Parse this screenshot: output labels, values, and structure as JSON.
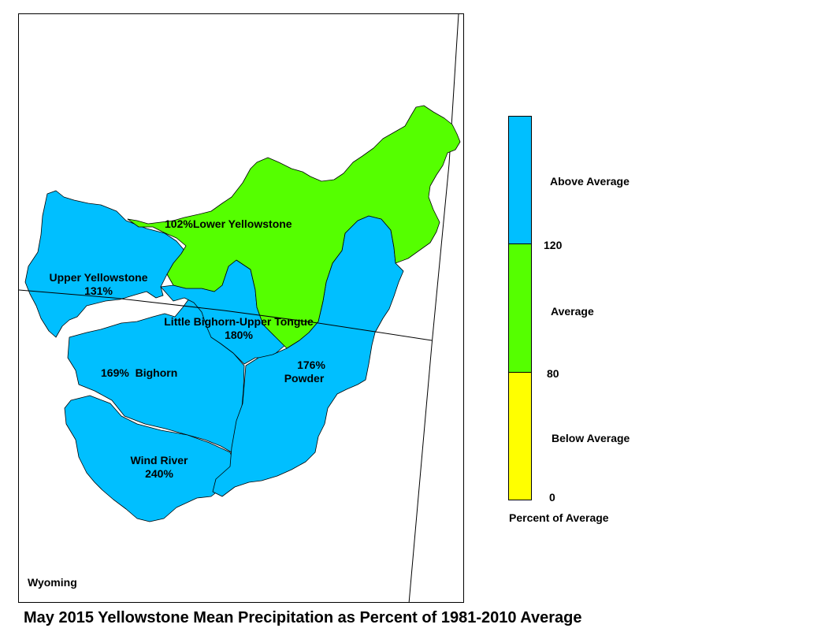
{
  "map": {
    "region_label": "Wyoming",
    "basins": [
      {
        "name": "Lower Yellowstone",
        "percent_label": "102%",
        "percent": 102,
        "category": "Average"
      },
      {
        "name": "Upper Yellowstone",
        "percent_label": "131%",
        "percent": 131,
        "category": "Above Average"
      },
      {
        "name": "Little Bighorn-Upper Tongue",
        "percent_label": "180%",
        "percent": 180,
        "category": "Above Average"
      },
      {
        "name": "Bighorn",
        "percent_label": "169%",
        "percent": 169,
        "category": "Above Average"
      },
      {
        "name": "Powder",
        "percent_label": "176%",
        "percent": 176,
        "category": "Above Average"
      },
      {
        "name": "Wind River",
        "percent_label": "240%",
        "percent": 240,
        "category": "Above Average"
      }
    ]
  },
  "legend": {
    "title": "Percent of Average",
    "classes": [
      {
        "label": "Above Average",
        "color": "#00bfff"
      },
      {
        "label": "Average",
        "color": "#55ff00"
      },
      {
        "label": "Below Average",
        "color": "#ffff00"
      }
    ],
    "breaks": [
      "120",
      "80",
      "0"
    ]
  },
  "title": "May 2015 Yellowstone Mean Precipitation as Percent of 1981-2010 Average"
}
